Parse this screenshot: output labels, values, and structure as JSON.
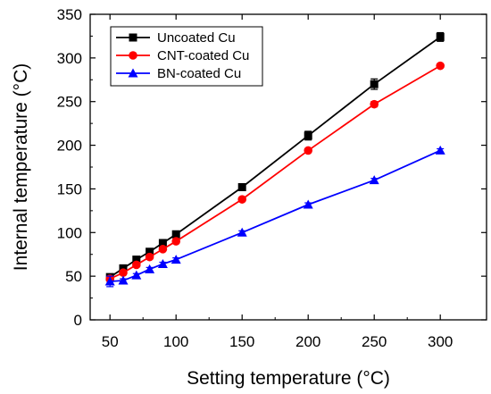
{
  "chart_data": {
    "type": "line",
    "x": [
      50,
      60,
      70,
      80,
      90,
      100,
      150,
      200,
      250,
      300
    ],
    "xlabel": "Setting temperature (°C)",
    "ylabel": "Internal temperature (°C)",
    "xlim": [
      35,
      335
    ],
    "ylim": [
      0,
      350
    ],
    "xticks": [
      50,
      100,
      150,
      200,
      250,
      300
    ],
    "yticks": [
      0,
      50,
      100,
      150,
      200,
      250,
      300,
      350
    ],
    "grid": false,
    "legend_position": "top-left",
    "series": [
      {
        "name": "Uncoated Cu",
        "color": "#000000",
        "marker": "square",
        "values": [
          49,
          59,
          69,
          78,
          88,
          98,
          152,
          211,
          270,
          324
        ],
        "errors": [
          3,
          3,
          2,
          2,
          2,
          2,
          2,
          5,
          6,
          5
        ]
      },
      {
        "name": "CNT-coated Cu",
        "color": "#ff0000",
        "marker": "circle",
        "values": [
          47,
          54,
          63,
          72,
          81,
          90,
          138,
          194,
          247,
          291
        ],
        "errors": [
          3,
          2,
          2,
          2,
          2,
          2,
          2,
          2,
          3,
          2
        ]
      },
      {
        "name": "BN-coated Cu",
        "color": "#0000ff",
        "marker": "triangle",
        "values": [
          44,
          45,
          51,
          58,
          64,
          69,
          100,
          132,
          160,
          194
        ],
        "errors": [
          6,
          2,
          2,
          2,
          2,
          2,
          2,
          2,
          2,
          2
        ]
      }
    ]
  }
}
